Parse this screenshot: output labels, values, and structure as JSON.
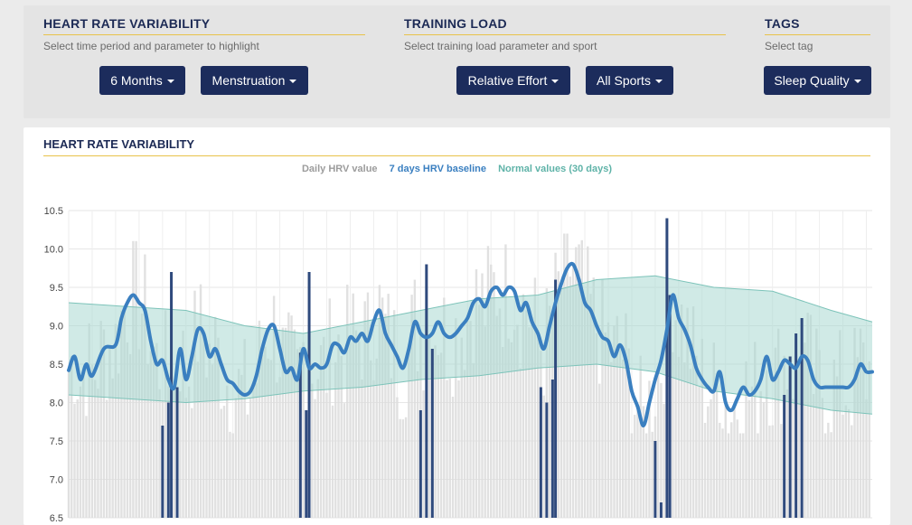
{
  "filters": {
    "hrv": {
      "title": "HEART RATE VARIABILITY",
      "subtitle": "Select time period and parameter to highlight",
      "period_label": "6 Months",
      "parameter_label": "Menstruation"
    },
    "training": {
      "title": "TRAINING LOAD",
      "subtitle": "Select training load parameter and sport",
      "parameter_label": "Relative Effort",
      "sport_label": "All Sports"
    },
    "tags": {
      "title": "TAGS",
      "subtitle": "Select tag",
      "tag_label": "Sleep Quality"
    }
  },
  "chart": {
    "title": "HEART RATE VARIABILITY",
    "legend": {
      "daily": "Daily HRV value",
      "baseline": "7 days HRV baseline",
      "normal": "Normal values (30 days)"
    }
  },
  "colors": {
    "navy": "#1c2c5c",
    "baseline": "#3a7fc0",
    "normal_band": "#a9d8d2",
    "daily_bar": "#dcdcdc",
    "highlight_bar": "#2f4a7d",
    "accent_underline": "#e8c24a"
  },
  "chart_data": {
    "type": "line",
    "ylim": [
      6.5,
      10.5
    ],
    "yticks": [
      "10.5",
      "10.0",
      "9.5",
      "9.0",
      "8.5",
      "8.0",
      "7.5",
      "7.0",
      "6.5"
    ],
    "days": 180,
    "series": [
      {
        "name": "7 days HRV baseline",
        "points": [
          [
            0,
            8.42
          ],
          [
            2,
            8.6
          ],
          [
            4,
            8.3
          ],
          [
            6,
            8.5
          ],
          [
            8,
            8.35
          ],
          [
            12,
            8.7
          ],
          [
            16,
            8.75
          ],
          [
            18,
            9.1
          ],
          [
            20,
            9.3
          ],
          [
            22,
            9.4
          ],
          [
            24,
            9.3
          ],
          [
            26,
            9.2
          ],
          [
            28,
            8.8
          ],
          [
            30,
            8.5
          ],
          [
            32,
            8.55
          ],
          [
            34,
            8.3
          ],
          [
            36,
            8.2
          ],
          [
            38,
            8.7
          ],
          [
            40,
            8.3
          ],
          [
            42,
            8.6
          ],
          [
            44,
            8.95
          ],
          [
            46,
            8.9
          ],
          [
            48,
            8.6
          ],
          [
            50,
            8.7
          ],
          [
            52,
            8.5
          ],
          [
            54,
            8.3
          ],
          [
            56,
            8.25
          ],
          [
            58,
            8.15
          ],
          [
            60,
            8.1
          ],
          [
            62,
            8.15
          ],
          [
            64,
            8.35
          ],
          [
            66,
            8.7
          ],
          [
            68,
            8.95
          ],
          [
            70,
            9.0
          ],
          [
            72,
            8.7
          ],
          [
            74,
            8.4
          ],
          [
            76,
            8.45
          ],
          [
            78,
            8.3
          ],
          [
            80,
            8.7
          ],
          [
            82,
            8.45
          ],
          [
            84,
            8.5
          ],
          [
            86,
            8.45
          ],
          [
            88,
            8.5
          ],
          [
            90,
            8.75
          ],
          [
            92,
            8.75
          ],
          [
            94,
            8.65
          ],
          [
            96,
            8.85
          ],
          [
            98,
            8.8
          ],
          [
            100,
            8.9
          ],
          [
            102,
            8.8
          ],
          [
            104,
            9.05
          ],
          [
            106,
            9.2
          ],
          [
            108,
            8.9
          ],
          [
            110,
            8.75
          ],
          [
            112,
            8.6
          ],
          [
            114,
            8.45
          ],
          [
            116,
            8.7
          ],
          [
            118,
            9.05
          ],
          [
            120,
            8.9
          ],
          [
            122,
            8.85
          ],
          [
            124,
            8.9
          ],
          [
            126,
            9.05
          ],
          [
            128,
            8.9
          ],
          [
            130,
            8.85
          ],
          [
            132,
            8.9
          ],
          [
            134,
            9.0
          ],
          [
            136,
            9.1
          ],
          [
            138,
            9.3
          ],
          [
            140,
            9.35
          ],
          [
            142,
            9.25
          ],
          [
            144,
            9.45
          ],
          [
            146,
            9.5
          ],
          [
            148,
            9.4
          ],
          [
            150,
            9.5
          ],
          [
            152,
            9.45
          ],
          [
            154,
            9.2
          ],
          [
            156,
            9.3
          ],
          [
            158,
            9.05
          ],
          [
            160,
            8.9
          ],
          [
            162,
            8.7
          ],
          [
            164,
            9.0
          ],
          [
            166,
            9.3
          ],
          [
            168,
            9.55
          ],
          [
            170,
            9.75
          ],
          [
            172,
            9.8
          ],
          [
            174,
            9.6
          ],
          [
            176,
            9.3
          ],
          [
            178,
            9.2
          ],
          [
            180,
            9.0
          ],
          [
            182,
            8.85
          ],
          [
            184,
            8.8
          ],
          [
            186,
            8.6
          ],
          [
            188,
            8.75
          ],
          [
            190,
            8.55
          ],
          [
            192,
            8.15
          ],
          [
            194,
            7.95
          ],
          [
            196,
            7.7
          ],
          [
            198,
            8.0
          ],
          [
            200,
            8.3
          ],
          [
            202,
            8.55
          ],
          [
            204,
            8.95
          ],
          [
            206,
            9.4
          ],
          [
            208,
            9.1
          ],
          [
            210,
            8.95
          ],
          [
            212,
            8.75
          ],
          [
            214,
            8.45
          ],
          [
            216,
            8.3
          ],
          [
            218,
            8.2
          ],
          [
            220,
            8.15
          ],
          [
            222,
            8.4
          ],
          [
            224,
            8.0
          ],
          [
            226,
            7.9
          ],
          [
            228,
            8.05
          ],
          [
            230,
            8.2
          ],
          [
            232,
            8.1
          ],
          [
            234,
            8.15
          ],
          [
            236,
            8.3
          ],
          [
            238,
            8.6
          ],
          [
            240,
            8.3
          ],
          [
            242,
            8.4
          ],
          [
            244,
            8.55
          ],
          [
            246,
            8.5
          ],
          [
            248,
            8.45
          ],
          [
            250,
            8.6
          ],
          [
            252,
            8.55
          ],
          [
            254,
            8.3
          ],
          [
            256,
            8.2
          ],
          [
            258,
            8.2
          ],
          [
            260,
            8.2
          ],
          [
            262,
            8.2
          ],
          [
            264,
            8.2
          ],
          [
            266,
            8.2
          ],
          [
            268,
            8.3
          ],
          [
            270,
            8.5
          ],
          [
            272,
            8.4
          ],
          [
            274,
            8.4
          ]
        ]
      }
    ],
    "normal_band": {
      "upper": [
        [
          0,
          9.3
        ],
        [
          20,
          9.25
        ],
        [
          40,
          9.2
        ],
        [
          60,
          9.0
        ],
        [
          80,
          8.9
        ],
        [
          100,
          9.05
        ],
        [
          120,
          9.2
        ],
        [
          140,
          9.35
        ],
        [
          160,
          9.4
        ],
        [
          180,
          9.6
        ],
        [
          200,
          9.65
        ],
        [
          220,
          9.5
        ],
        [
          240,
          9.45
        ],
        [
          260,
          9.2
        ],
        [
          274,
          9.05
        ]
      ],
      "lower": [
        [
          0,
          8.1
        ],
        [
          20,
          8.05
        ],
        [
          40,
          8.0
        ],
        [
          60,
          8.05
        ],
        [
          80,
          8.15
        ],
        [
          100,
          8.2
        ],
        [
          120,
          8.3
        ],
        [
          140,
          8.35
        ],
        [
          160,
          8.45
        ],
        [
          180,
          8.5
        ],
        [
          200,
          8.4
        ],
        [
          220,
          8.15
        ],
        [
          240,
          8.05
        ],
        [
          260,
          7.9
        ],
        [
          274,
          7.85
        ]
      ]
    },
    "highlights": [
      [
        32,
        7.7
      ],
      [
        34,
        8.0
      ],
      [
        35,
        9.7
      ],
      [
        37,
        8.2
      ],
      [
        79,
        8.65
      ],
      [
        81,
        7.9
      ],
      [
        82,
        9.7
      ],
      [
        120,
        7.9
      ],
      [
        122,
        9.8
      ],
      [
        124,
        8.7
      ],
      [
        161,
        8.2
      ],
      [
        163,
        8.0
      ],
      [
        165,
        8.3
      ],
      [
        166,
        9.6
      ],
      [
        200,
        7.5
      ],
      [
        202,
        6.7
      ],
      [
        204,
        10.4
      ],
      [
        205,
        9.4
      ],
      [
        244,
        8.1
      ],
      [
        246,
        8.6
      ],
      [
        248,
        8.9
      ],
      [
        250,
        9.1
      ]
    ]
  }
}
